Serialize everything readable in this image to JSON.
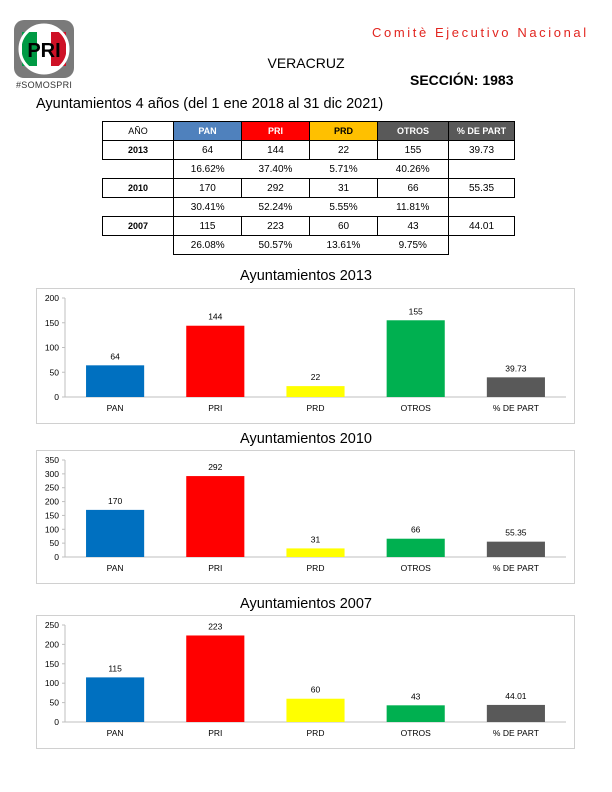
{
  "header": {
    "logo_text": "PRI",
    "hashtag": "#SOMOSPRI",
    "comite": "Comitè Ejecutivo Nacional",
    "estado": "VERACRUZ",
    "seccion": "SECCIÓN: 1983",
    "periodo": "Ayuntamientos 4 años (del 1 ene 2018 al 31 dic 2021)"
  },
  "colors": {
    "PAN": "#0070c0",
    "PRI": "#ff0000",
    "PRD": "#ffff00",
    "OTROS": "#00b050",
    "PART": "#595959",
    "header_pan": "#4f81bd",
    "header_pri": "#ff0000",
    "header_prd": "#ffc000",
    "header_otros": "#595959",
    "header_part": "#595959"
  },
  "table": {
    "headers": [
      "AÑO",
      "PAN",
      "PRI",
      "PRD",
      "OTROS",
      "% DE PART"
    ],
    "rows": [
      {
        "year": "2013",
        "values": [
          "64",
          "144",
          "22",
          "155"
        ],
        "part": "39.73",
        "pcts": [
          "16.62%",
          "37.40%",
          "5.71%",
          "40.26%"
        ]
      },
      {
        "year": "2010",
        "values": [
          "170",
          "292",
          "31",
          "66"
        ],
        "part": "55.35",
        "pcts": [
          "30.41%",
          "52.24%",
          "5.55%",
          "11.81%"
        ]
      },
      {
        "year": "2007",
        "values": [
          "115",
          "223",
          "60",
          "43"
        ],
        "part": "44.01",
        "pcts": [
          "26.08%",
          "50.57%",
          "13.61%",
          "9.75%"
        ]
      }
    ]
  },
  "chart_data": [
    {
      "type": "bar",
      "title": "Ayuntamientos  2013",
      "categories": [
        "PAN",
        "PRI",
        "PRD",
        "OTROS",
        "% DE PART"
      ],
      "values": [
        64,
        144,
        22,
        155,
        39.73
      ],
      "value_labels": [
        "64",
        "144",
        "22",
        "155",
        "39.73"
      ],
      "ylim": [
        0,
        200
      ],
      "yticks": [
        0,
        50,
        100,
        150,
        200
      ],
      "colors": [
        "#0070c0",
        "#ff0000",
        "#ffff00",
        "#00b050",
        "#595959"
      ]
    },
    {
      "type": "bar",
      "title": "Ayuntamientos 2010",
      "categories": [
        "PAN",
        "PRI",
        "PRD",
        "OTROS",
        "% DE PART"
      ],
      "values": [
        170,
        292,
        31,
        66,
        55.35
      ],
      "value_labels": [
        "170",
        "292",
        "31",
        "66",
        "55.35"
      ],
      "ylim": [
        0,
        350
      ],
      "yticks": [
        0,
        50,
        100,
        150,
        200,
        250,
        300,
        350
      ],
      "colors": [
        "#0070c0",
        "#ff0000",
        "#ffff00",
        "#00b050",
        "#595959"
      ]
    },
    {
      "type": "bar",
      "title": "Ayuntamientos 2007",
      "categories": [
        "PAN",
        "PRI",
        "PRD",
        "OTROS",
        "% DE PART"
      ],
      "values": [
        115,
        223,
        60,
        43,
        44.01
      ],
      "value_labels": [
        "115",
        "223",
        "60",
        "43",
        "44.01"
      ],
      "ylim": [
        0,
        250
      ],
      "yticks": [
        0,
        50,
        100,
        150,
        200,
        250
      ],
      "colors": [
        "#0070c0",
        "#ff0000",
        "#ffff00",
        "#00b050",
        "#595959"
      ]
    }
  ]
}
